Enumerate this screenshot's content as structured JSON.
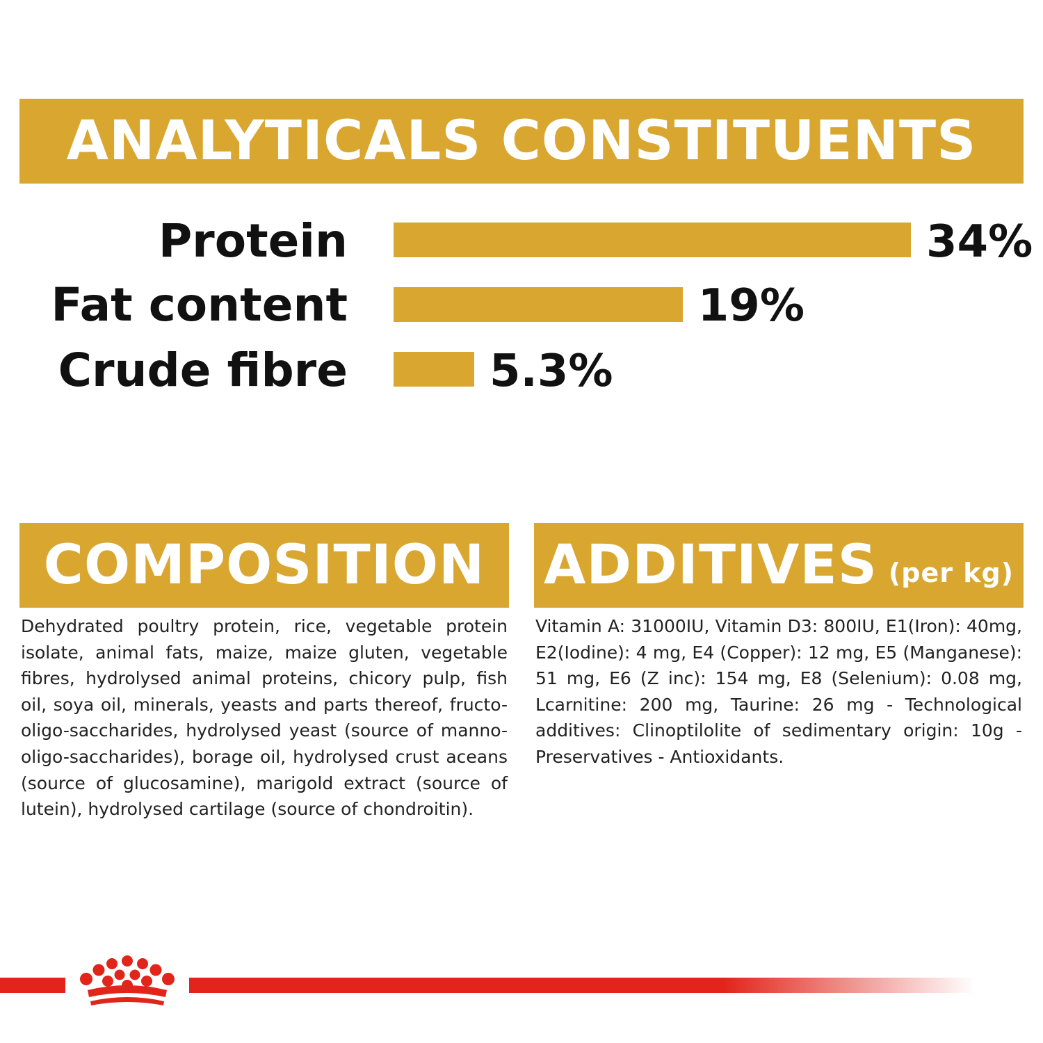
{
  "analytics": {
    "title": "ANALYTICALS CONSTITUENTS"
  },
  "chart_data": {
    "type": "bar",
    "orientation": "horizontal",
    "title": "ANALYTICALS CONSTITUENTS",
    "categories": [
      "Protein",
      "Fat content",
      "Crude fibre"
    ],
    "values": [
      34,
      19,
      5.3
    ],
    "value_labels": [
      "34%",
      "19%",
      "5.3%"
    ],
    "unit": "%",
    "xlim": [
      0,
      34
    ],
    "grid": false,
    "legend": "none",
    "bar_color": "#d9a630"
  },
  "composition": {
    "title": "COMPOSITION",
    "text": "Dehydrated poultry protein, rice, vegetable protein isolate, animal fats, maize, maize gluten, vegetable fibres, hydrolysed animal proteins, chicory pulp, fish oil, soya oil, minerals, yeasts and parts thereof, fructo-oligo-saccharides, hydrolysed yeast (source of manno-oligo-saccharides), borage oil, hydrolysed crust aceans (source of glucosamine), marigold extract (source of lutein), hydrolysed cartilage (source of chondroitin)."
  },
  "additives": {
    "title": "ADDITIVES",
    "subtitle": "(per kg)",
    "text": "Vitamin A: 31000IU, Vitamin D3: 800IU, E1(Iron): 40mg, E2(Iodine): 4 mg, E4 (Copper): 12 mg, E5 (Manganese): 51 mg, E6 (Z inc): 154 mg, E8 (Selenium): 0.08 mg, Lcarnitine: 200 mg, Taurine: 26 mg - Technological additives: Clinoptilolite of sedimentary origin: 10g - Preservatives - Antioxidants."
  },
  "brand": {
    "logo_icon": "royal-canin-crown-icon",
    "accent_color": "#e1251b",
    "gold_color": "#d9a630"
  }
}
